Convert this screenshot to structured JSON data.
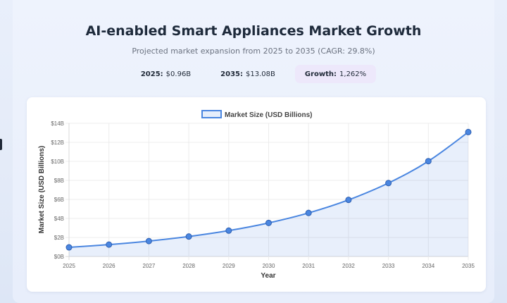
{
  "header": {
    "title": "AI-enabled Smart Appliances Market Growth",
    "subtitle": "Projected market expansion from 2025 to 2035 (CAGR: 29.8%)"
  },
  "stats": [
    {
      "label": "2025:",
      "value": "$0.96B"
    },
    {
      "label": "2035:",
      "value": "$13.08B"
    },
    {
      "label": "Growth:",
      "value": "1,262%"
    }
  ],
  "chart_data": {
    "type": "line",
    "title": "",
    "x": [
      "2025",
      "2026",
      "2027",
      "2028",
      "2029",
      "2030",
      "2031",
      "2032",
      "2033",
      "2034",
      "2035"
    ],
    "series": [
      {
        "name": "Market Size (USD Billions)",
        "values": [
          0.96,
          1.25,
          1.62,
          2.1,
          2.72,
          3.53,
          4.58,
          5.95,
          7.72,
          10.02,
          13.08
        ],
        "color": "#4a86e0",
        "fill": true
      }
    ],
    "xlabel": "Year",
    "ylabel": "Market Size (USD Billions)",
    "ylim": [
      0,
      14
    ],
    "yticks": [
      0,
      2,
      4,
      6,
      8,
      10,
      12,
      14
    ],
    "ytick_labels": [
      "$0B",
      "$2B",
      "$4B",
      "$6B",
      "$8B",
      "$10B",
      "$12B",
      "$14B"
    ],
    "grid": true,
    "legend": "top-center"
  }
}
